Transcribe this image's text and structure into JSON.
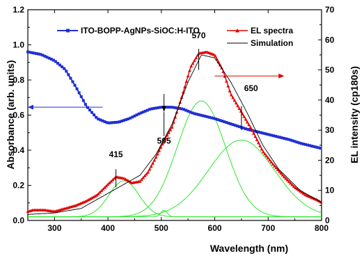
{
  "chart_data": {
    "type": "line",
    "xlabel": "Wavelength (nm)",
    "ylabel_left": "Absorbance (arb. units)",
    "ylabel_right": "EL intensity (cp180s)",
    "xlim": [
      250,
      800
    ],
    "ylim_left": [
      0,
      1.2
    ],
    "ylim_right": [
      0,
      70
    ],
    "x_ticks": [
      300,
      400,
      500,
      600,
      700,
      800
    ],
    "y_left_ticks": [
      0.0,
      0.2,
      0.4,
      0.6,
      0.8,
      1.0,
      1.2
    ],
    "y_right_ticks": [
      0,
      10,
      20,
      30,
      40,
      50,
      60,
      70
    ],
    "x_tick_labels": [
      "300",
      "400",
      "500",
      "600",
      "700",
      "800"
    ],
    "y_left_tick_labels": [
      "0.0",
      "0.2",
      "0.4",
      "0.6",
      "0.8",
      "1.0",
      "1.2"
    ],
    "y_right_tick_labels": [
      "0",
      "10",
      "20",
      "30",
      "40",
      "50",
      "60",
      "70"
    ],
    "legend": [
      "ITO-BOPP-AgNPs-SiOC:H-ITO",
      "EL spectra",
      "Simulation"
    ],
    "legend_placement": "top",
    "grid": false,
    "series": [
      {
        "name": "ITO-BOPP-AgNPs-SiOC:H-ITO",
        "axis": "left",
        "color": "#1f2fd6",
        "marker": "square",
        "x": [
          250,
          275,
          300,
          320,
          340,
          360,
          380,
          400,
          420,
          440,
          460,
          480,
          500,
          520,
          540,
          560,
          580,
          600,
          620,
          640,
          660,
          680,
          700,
          720,
          740,
          760,
          780,
          800
        ],
        "y": [
          0.96,
          0.945,
          0.91,
          0.86,
          0.76,
          0.65,
          0.58,
          0.555,
          0.56,
          0.58,
          0.61,
          0.635,
          0.645,
          0.645,
          0.635,
          0.61,
          0.595,
          0.58,
          0.56,
          0.54,
          0.52,
          0.505,
          0.49,
          0.475,
          0.46,
          0.44,
          0.425,
          0.41
        ]
      },
      {
        "name": "EL spectra",
        "axis": "right",
        "color": "#e00000",
        "marker": "triangle",
        "x": [
          250,
          260,
          280,
          300,
          320,
          340,
          360,
          380,
          400,
          415,
          430,
          445,
          460,
          475,
          490,
          505,
          520,
          540,
          555,
          570,
          585,
          600,
          615,
          630,
          650,
          670,
          690,
          710,
          730,
          750,
          770,
          790,
          800
        ],
        "y": [
          3,
          3.5,
          3.5,
          3,
          4,
          5,
          6.5,
          8.5,
          12,
          14.5,
          14,
          12.5,
          13,
          16,
          21,
          26.5,
          31,
          42,
          51,
          55.5,
          56,
          55,
          50,
          42,
          36,
          30,
          23,
          18.5,
          14.5,
          11,
          8.5,
          7,
          6
        ]
      },
      {
        "name": "Simulation",
        "axis": "right",
        "color": "#000000",
        "x": [
          250,
          300,
          350,
          400,
          430,
          460,
          490,
          520,
          550,
          575,
          600,
          630,
          660,
          690,
          720,
          760,
          800
        ],
        "y": [
          2,
          2.5,
          4,
          9,
          12,
          15,
          22,
          32,
          46,
          55,
          54,
          46,
          36,
          25,
          17,
          10,
          6
        ]
      },
      {
        "name": "Gaussian 415",
        "axis": "right",
        "color": "#2ce62c",
        "center": 430,
        "sigma": 28,
        "amplitude": 12,
        "baseline": 1.2
      },
      {
        "name": "Gaussian 505",
        "axis": "right",
        "color": "#2ce62c",
        "center": 505,
        "sigma": 6,
        "amplitude": 2.2,
        "baseline": 1.2
      },
      {
        "name": "Gaussian 570",
        "axis": "right",
        "color": "#2ce62c",
        "center": 575,
        "sigma": 45,
        "amplitude": 38.5,
        "baseline": 1.2
      },
      {
        "name": "Gaussian 650",
        "axis": "right",
        "color": "#2ce62c",
        "center": 650,
        "sigma": 62,
        "amplitude": 25.5,
        "baseline": 1.2
      }
    ],
    "annotations": [
      {
        "text": "415",
        "x": 415
      },
      {
        "text": "505",
        "x": 505
      },
      {
        "text": "570",
        "x": 570
      },
      {
        "text": "650",
        "x": 650
      }
    ]
  }
}
